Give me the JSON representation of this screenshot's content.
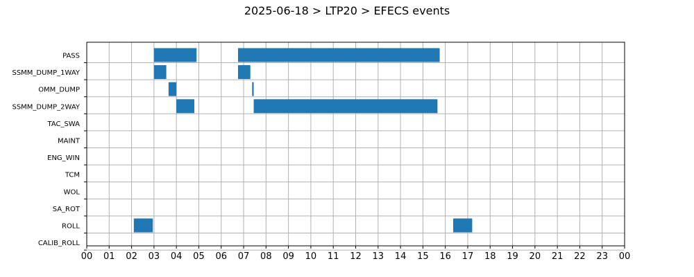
{
  "chart_data": {
    "type": "bar",
    "orientation": "horizontal-timeline",
    "title": "2025-06-18 > LTP20 > EFECS events",
    "xlabel": "",
    "ylabel": "",
    "grid": true,
    "xlim": [
      0,
      24
    ],
    "x_tick_labels": [
      "00",
      "01",
      "02",
      "03",
      "04",
      "05",
      "06",
      "07",
      "08",
      "09",
      "10",
      "11",
      "12",
      "13",
      "14",
      "15",
      "16",
      "17",
      "18",
      "19",
      "20",
      "21",
      "22",
      "23",
      "00"
    ],
    "categories": [
      "PASS",
      "SSMM_DUMP_1WAY",
      "OMM_DUMP",
      "SSMM_DUMP_2WAY",
      "TAC_SWA",
      "MAINT",
      "ENG_WIN",
      "TCM",
      "WOL",
      "SA_ROT",
      "ROLL",
      "CALIB_ROLL"
    ],
    "bar_color": "#1f77b4",
    "events": [
      {
        "category": "PASS",
        "start": 3.0,
        "end": 4.9
      },
      {
        "category": "PASS",
        "start": 6.75,
        "end": 15.75
      },
      {
        "category": "SSMM_DUMP_1WAY",
        "start": 3.0,
        "end": 3.55
      },
      {
        "category": "SSMM_DUMP_1WAY",
        "start": 6.75,
        "end": 7.3
      },
      {
        "category": "OMM_DUMP",
        "start": 3.65,
        "end": 4.0
      },
      {
        "category": "OMM_DUMP",
        "start": 7.38,
        "end": 7.45
      },
      {
        "category": "SSMM_DUMP_2WAY",
        "start": 4.0,
        "end": 4.8
      },
      {
        "category": "SSMM_DUMP_2WAY",
        "start": 7.45,
        "end": 15.65
      },
      {
        "category": "ROLL",
        "start": 2.1,
        "end": 2.95
      },
      {
        "category": "ROLL",
        "start": 16.35,
        "end": 17.2
      }
    ]
  }
}
